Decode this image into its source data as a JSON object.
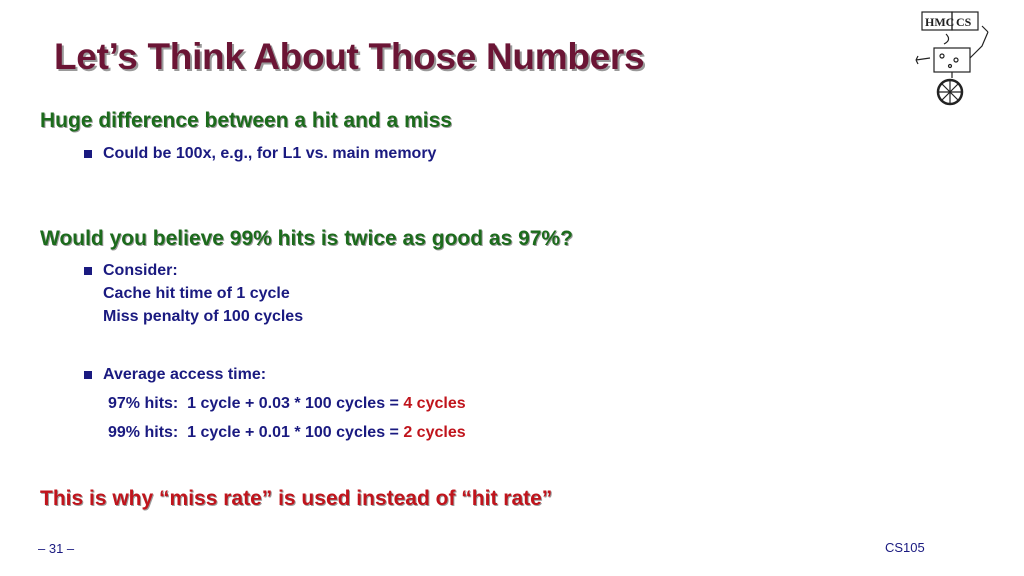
{
  "slide": {
    "title": "Let’s Think About Those Numbers",
    "logo_text": {
      "hmc": "HMC",
      "cs": "CS"
    },
    "section1": {
      "heading": "Huge difference between a hit and a miss",
      "bullet": "Could be 100x, e.g., for L1 vs. main memory"
    },
    "section2": {
      "heading": "Would you believe 99% hits is twice as good as 97%?",
      "consider_lines": [
        "Consider:",
        "Cache hit time of 1 cycle",
        "Miss penalty of 100 cycles"
      ],
      "avg_label": "Average access time:",
      "calc_lines": [
        {
          "prefix": "97% hits:  1 cycle + 0.03 * 100 cycles = ",
          "result": "4 cycles"
        },
        {
          "prefix": "99% hits:  1 cycle + 0.01 * 100 cycles = ",
          "result": "2 cycles"
        }
      ]
    },
    "conclusion": "This is why “miss rate” is used instead of “hit rate”",
    "footer": {
      "page": "– 31 –",
      "course": "CS105"
    },
    "colors": {
      "title": "#6b1535",
      "heading": "#1c6b1c",
      "body": "#1a1a80",
      "accent": "#c0141c"
    }
  }
}
